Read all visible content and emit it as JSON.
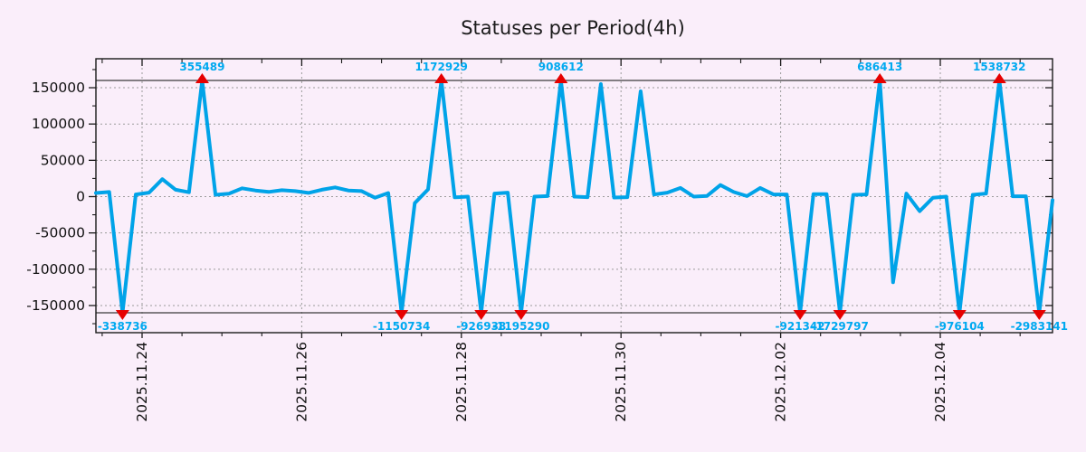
{
  "chart_data": {
    "type": "line",
    "title": "Statuses per Period(4h)",
    "period": "4h",
    "x_tick_labels": [
      "2025.11.24",
      "2025.11.26",
      "2025.11.28",
      "2025.11.30",
      "2025.12.02",
      "2025.12.04"
    ],
    "y_ticks": [
      150000,
      100000,
      50000,
      0,
      -50000,
      -100000,
      -150000
    ],
    "clip_value": 160000,
    "grid": true,
    "legend": "none",
    "values": [
      5000,
      6400,
      -338736,
      3000,
      5500,
      24000,
      9500,
      6000,
      355489,
      2500,
      4000,
      11500,
      8500,
      6500,
      8900,
      7600,
      5100,
      9500,
      12700,
      8500,
      7600,
      -1500,
      5000,
      -1150734,
      -9000,
      10000,
      1172929,
      -1000,
      0,
      -926938,
      4200,
      5500,
      -1195290,
      0,
      800,
      908612,
      0,
      -800,
      155000,
      -1200,
      -800,
      145000,
      3000,
      5500,
      11900,
      0,
      1000,
      16000,
      6400,
      800,
      11900,
      3000,
      3000,
      -921342,
      3400,
      3400,
      -1729797,
      2500,
      3000,
      686413,
      -118000,
      4200,
      -20000,
      -1500,
      0,
      -976104,
      2500,
      4200,
      1538732,
      500,
      500,
      -2983141,
      -5000
    ],
    "annotations": [
      {
        "index": 2,
        "label": "-338736",
        "side": "bottom"
      },
      {
        "index": 8,
        "label": "355489",
        "side": "top"
      },
      {
        "index": 23,
        "label": "-1150734",
        "side": "bottom"
      },
      {
        "index": 26,
        "label": "1172929",
        "side": "top"
      },
      {
        "index": 29,
        "label": "-926938",
        "side": "bottom"
      },
      {
        "index": 32,
        "label": "-1195290",
        "side": "bottom"
      },
      {
        "index": 35,
        "label": "908612",
        "side": "top"
      },
      {
        "index": 53,
        "label": "-921342",
        "side": "bottom"
      },
      {
        "index": 56,
        "label": "-1729797",
        "side": "bottom"
      },
      {
        "index": 59,
        "label": "686413",
        "side": "top"
      },
      {
        "index": 65,
        "label": "-976104",
        "side": "bottom"
      },
      {
        "index": 68,
        "label": "1538732",
        "side": "top"
      },
      {
        "index": 71,
        "label": "-2983141",
        "side": "bottom"
      }
    ],
    "colors": {
      "background": "#faeefa",
      "line": "#00a3e8",
      "marker": "#e60000",
      "annotation": "#00a9f0",
      "grid": "#9b9b9b",
      "axis": "#1a1a1a",
      "clip_line": "#3a3a3a",
      "title": "#1c1c1c"
    }
  }
}
